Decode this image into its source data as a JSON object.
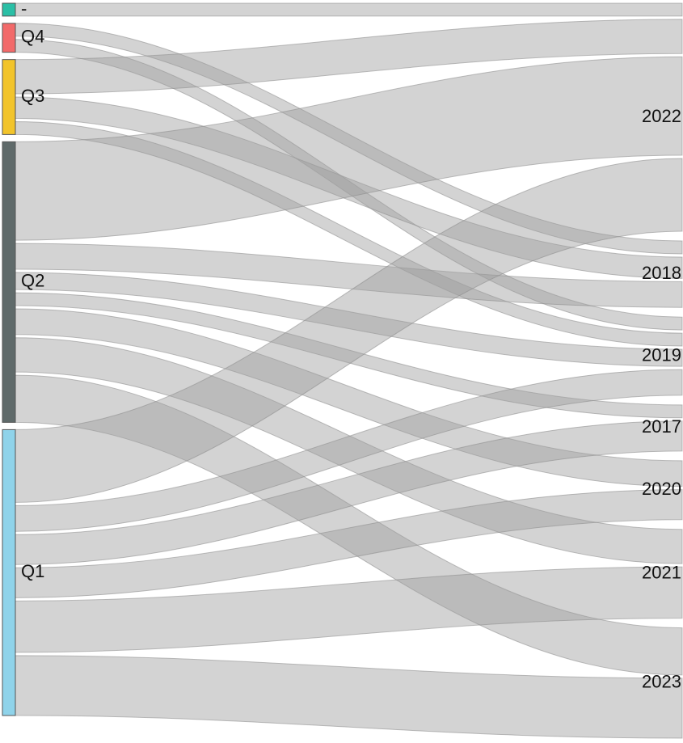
{
  "chart_data": {
    "type": "sankey",
    "left_nodes": [
      {
        "id": "dash",
        "label": "-",
        "color": "#2bbfa6"
      },
      {
        "id": "q4",
        "label": "Q4",
        "color": "#f26a6a"
      },
      {
        "id": "q3",
        "label": "Q3",
        "color": "#f2c42b"
      },
      {
        "id": "q2",
        "label": "Q2",
        "color": "#5f6a6a"
      },
      {
        "id": "q1",
        "label": "Q1",
        "color": "#8fd3ea"
      }
    ],
    "right_nodes": [
      {
        "id": "y2022",
        "label": "2022"
      },
      {
        "id": "y2018",
        "label": "2018"
      },
      {
        "id": "y2019",
        "label": "2019"
      },
      {
        "id": "y2017",
        "label": "2017"
      },
      {
        "id": "y2020",
        "label": "2020"
      },
      {
        "id": "y2021",
        "label": "2021"
      },
      {
        "id": "y2023",
        "label": "2023"
      }
    ],
    "links": [
      {
        "source": "dash",
        "target": "y2022",
        "value": 3
      },
      {
        "source": "q4",
        "target": "y2019",
        "value": 3
      },
      {
        "source": "q4",
        "target": "y2018",
        "value": 3
      },
      {
        "source": "q3",
        "target": "y2022",
        "value": 8
      },
      {
        "source": "q3",
        "target": "y2018",
        "value": 5
      },
      {
        "source": "q3",
        "target": "y2019",
        "value": 3
      },
      {
        "source": "q2",
        "target": "y2022",
        "value": 23
      },
      {
        "source": "q2",
        "target": "y2018",
        "value": 6
      },
      {
        "source": "q2",
        "target": "y2019",
        "value": 4
      },
      {
        "source": "q2",
        "target": "y2017",
        "value": 3
      },
      {
        "source": "q2",
        "target": "y2020",
        "value": 6
      },
      {
        "source": "q2",
        "target": "y2021",
        "value": 8
      },
      {
        "source": "q2",
        "target": "y2023",
        "value": 11
      },
      {
        "source": "q1",
        "target": "y2022",
        "value": 17
      },
      {
        "source": "q1",
        "target": "y2019",
        "value": 6
      },
      {
        "source": "q1",
        "target": "y2017",
        "value": 7
      },
      {
        "source": "q1",
        "target": "y2020",
        "value": 7
      },
      {
        "source": "q1",
        "target": "y2021",
        "value": 12
      },
      {
        "source": "q1",
        "target": "y2023",
        "value": 14
      }
    ]
  }
}
